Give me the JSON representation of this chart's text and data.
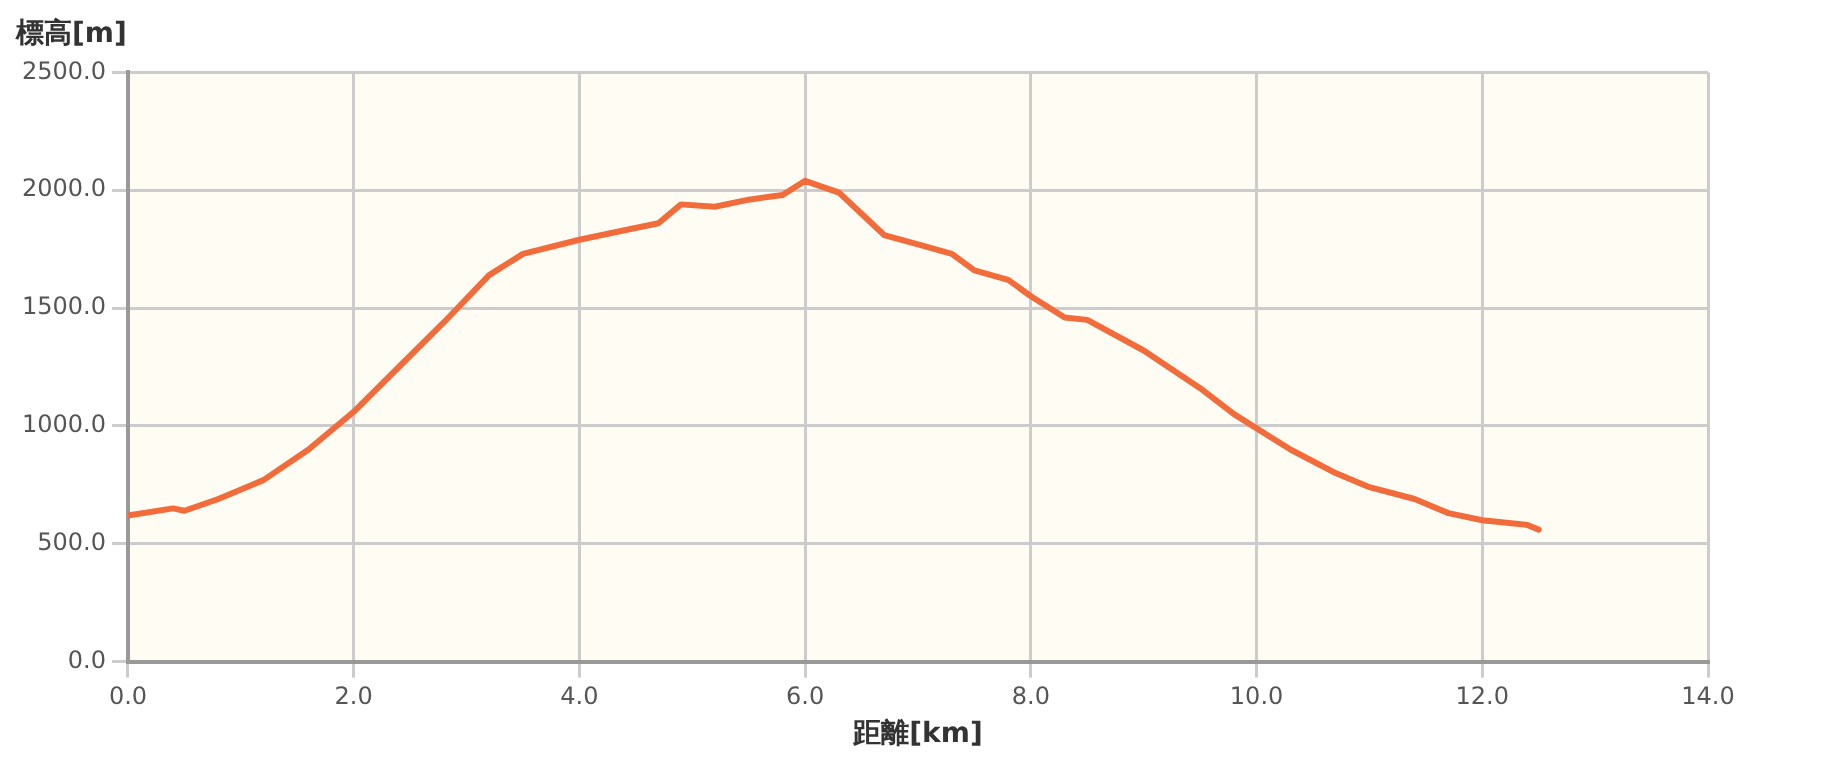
{
  "chart_data": {
    "type": "line",
    "xlabel": "距離[km]",
    "ylabel": "標高[m]",
    "x": [
      0,
      0.4,
      0.5,
      0.8,
      1.2,
      1.6,
      2.0,
      2.4,
      2.8,
      3.2,
      3.5,
      4.0,
      4.4,
      4.7,
      4.9,
      5.2,
      5.5,
      5.8,
      6.0,
      6.3,
      6.5,
      6.7,
      7.0,
      7.3,
      7.5,
      7.8,
      8.0,
      8.3,
      8.5,
      9.0,
      9.5,
      9.8,
      10.3,
      10.7,
      11.0,
      11.4,
      11.7,
      12.0,
      12.4,
      12.5
    ],
    "series": [
      {
        "color": "#f26b3a",
        "values": [
          620,
          650,
          640,
          690,
          770,
          900,
          1060,
          1250,
          1440,
          1640,
          1730,
          1790,
          1830,
          1860,
          1940,
          1930,
          1960,
          1980,
          2040,
          1990,
          1900,
          1810,
          1770,
          1730,
          1660,
          1620,
          1550,
          1460,
          1450,
          1320,
          1160,
          1050,
          900,
          800,
          740,
          690,
          630,
          600,
          580,
          560
        ]
      }
    ],
    "xlim": [
      0,
      14
    ],
    "xticks": [
      {
        "value": 0,
        "label": "0.0"
      },
      {
        "value": 2,
        "label": "2.0"
      },
      {
        "value": 4,
        "label": "4.0"
      },
      {
        "value": 6,
        "label": "6.0"
      },
      {
        "value": 8,
        "label": "8.0"
      },
      {
        "value": 10,
        "label": "10.0"
      },
      {
        "value": 12,
        "label": "12.0"
      },
      {
        "value": 14,
        "label": "14.0"
      }
    ],
    "ylim": [
      0,
      2500
    ],
    "yticks": [
      {
        "value": 0,
        "label": "0.0"
      },
      {
        "value": 500,
        "label": "500.0"
      },
      {
        "value": 1000,
        "label": "1000.0"
      },
      {
        "value": 1500,
        "label": "1500.0"
      },
      {
        "value": 2000,
        "label": "2000.0"
      },
      {
        "value": 2500,
        "label": "2500.0"
      }
    ],
    "grid": true,
    "legend": false,
    "marker": "none",
    "line_style": "solid"
  }
}
